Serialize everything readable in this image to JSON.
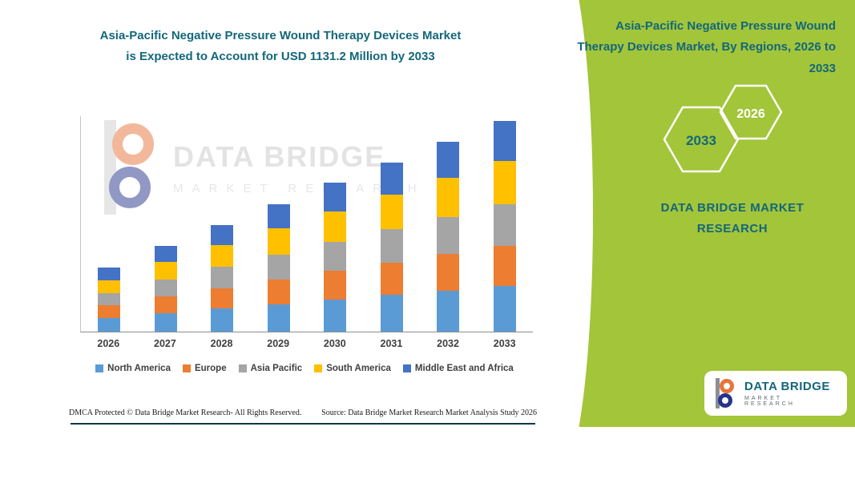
{
  "title": {
    "line1": "Asia-Pacific Negative Pressure Wound Therapy Devices Market",
    "line2": "is Expected to Account for USD 1131.2 Million by 2033"
  },
  "chart_data": {
    "type": "bar",
    "stacked": true,
    "categories": [
      "2026",
      "2027",
      "2028",
      "2029",
      "2030",
      "2031",
      "2032",
      "2033"
    ],
    "series": [
      {
        "name": "North America",
        "color": "#5B9BD5",
        "values": [
          75,
          100,
          124,
          148,
          172,
          196,
          220,
          244
        ]
      },
      {
        "name": "Europe",
        "color": "#ED7D31",
        "values": [
          65,
          88,
          110,
          131,
          153,
          174,
          196,
          217
        ]
      },
      {
        "name": "Asia Pacific",
        "color": "#A5A5A5",
        "values": [
          67,
          90,
          112,
          134,
          156,
          178,
          200,
          222
        ]
      },
      {
        "name": "South America",
        "color": "#FFC000",
        "values": [
          70,
          94,
          117,
          140,
          163,
          186,
          209,
          232
        ]
      },
      {
        "name": "Middle East and Africa",
        "color": "#4472C4",
        "values": [
          65,
          90,
          110,
          132,
          156,
          174,
          194,
          216.2
        ]
      }
    ],
    "totals": [
      342,
      462,
      573,
      685,
      800,
      908,
      1019,
      1131.2
    ],
    "unit_note": "USD 1131.2 Million by 2033",
    "ylim": [
      0,
      1160
    ],
    "grid": false,
    "legend_position": "bottom"
  },
  "watermark": {
    "brand": "DATA BRIDGE",
    "sub": "MARKET RESEARCH"
  },
  "footer": {
    "dmca": "DMCA Protected © Data Bridge Market Research-  All Rights Reserved.",
    "source": "Source: Data Bridge Market Research  Market Analysis Study 2026"
  },
  "right_panel": {
    "heading": "Asia-Pacific Negative Pressure Wound Therapy Devices Market, By Regions, 2026 to 2033",
    "hexagon_back_label": "2033",
    "hexagon_front_label": "2026",
    "brand": "DATA BRIDGE MARKET RESEARCH"
  },
  "logo_card": {
    "brand": "DATA BRIDGE",
    "sub": "MARKET RESEARCH"
  },
  "colors": {
    "panel_green": "#A3C53A",
    "teal": "#13677A",
    "axis": "#8C8C8C",
    "label_gray": "#404040",
    "bottom_rule": "#0B3948"
  }
}
